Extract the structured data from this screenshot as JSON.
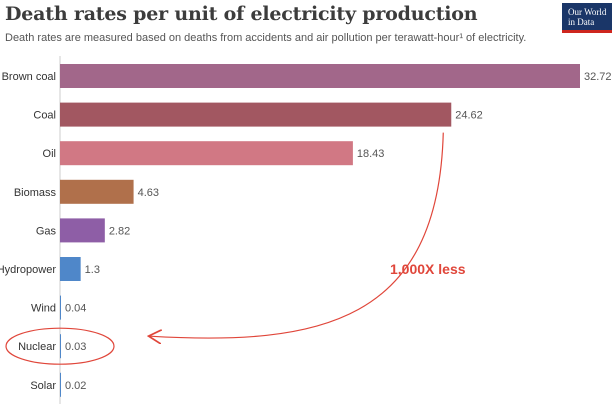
{
  "header": {
    "title": "Death rates per unit of electricity production",
    "subtitle": "Death rates are measured based on deaths from accidents and air pollution per terawatt-hour¹ of electricity.",
    "logo_line1": "Our World",
    "logo_line2": "in Data"
  },
  "chart_data": {
    "type": "bar",
    "orientation": "horizontal",
    "categories": [
      "Brown coal",
      "Coal",
      "Oil",
      "Biomass",
      "Gas",
      "Hydropower",
      "Wind",
      "Nuclear",
      "Solar"
    ],
    "values": [
      32.72,
      24.62,
      18.43,
      4.63,
      2.82,
      1.3,
      0.04,
      0.03,
      0.02
    ],
    "value_labels": [
      "32.72",
      "24.62",
      "18.43",
      "4.63",
      "2.82",
      "1.3",
      "0.04",
      "0.03",
      "0.02"
    ],
    "colors": [
      "#a2678a",
      "#a25761",
      "#d17884",
      "#b0704b",
      "#8e5ea6",
      "#4f87c9",
      "#4f87c9",
      "#4f87c9",
      "#4f87c9"
    ],
    "xlim": [
      0,
      32.72
    ],
    "grid": false,
    "annotation": {
      "text": "1,000X less",
      "from_category": "Coal",
      "to_category": "Nuclear",
      "color": "#e0463a",
      "circled_category": "Nuclear"
    }
  }
}
